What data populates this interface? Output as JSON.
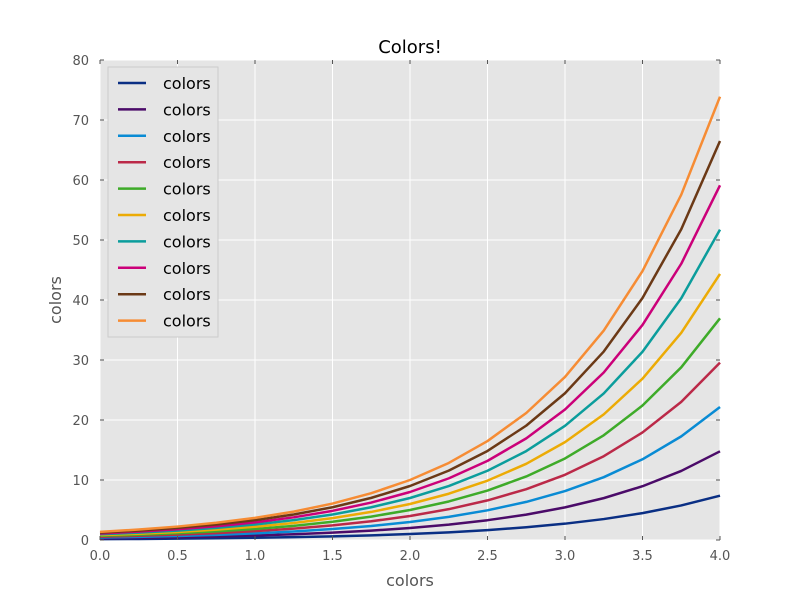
{
  "chart_data": {
    "type": "line",
    "title": "Colors!",
    "xlabel": "colors",
    "ylabel": "colors",
    "xlim": [
      0,
      4
    ],
    "ylim": [
      0,
      80
    ],
    "xticks": [
      "0.0",
      "0.5",
      "1.0",
      "1.5",
      "2.0",
      "2.5",
      "3.0",
      "3.5",
      "4.0"
    ],
    "yticks": [
      "0",
      "10",
      "20",
      "30",
      "40",
      "50",
      "60",
      "70",
      "80"
    ],
    "grid": true,
    "background": "#e5e5e5",
    "legend_position": "upper left",
    "x": [
      0,
      0.25,
      0.5,
      0.75,
      1.0,
      1.25,
      1.5,
      1.75,
      2.0,
      2.25,
      2.5,
      2.75,
      3.0,
      3.25,
      3.5,
      3.75,
      4.0
    ],
    "series": [
      {
        "name": "colors",
        "color": "#0a2f84",
        "values": [
          0.14,
          0.17,
          0.22,
          0.29,
          0.37,
          0.48,
          0.61,
          0.78,
          1.0,
          1.28,
          1.65,
          2.12,
          2.72,
          3.49,
          4.48,
          5.76,
          7.39
        ]
      },
      {
        "name": "colors",
        "color": "#4b0b69",
        "values": [
          0.27,
          0.35,
          0.45,
          0.58,
          0.74,
          0.95,
          1.22,
          1.56,
          2.0,
          2.57,
          3.3,
          4.23,
          5.44,
          6.98,
          8.96,
          11.51,
          14.78
        ]
      },
      {
        "name": "colors",
        "color": "#098bd4",
        "values": [
          0.41,
          0.52,
          0.67,
          0.86,
          1.1,
          1.42,
          1.83,
          2.34,
          3.0,
          3.85,
          4.95,
          6.35,
          8.15,
          10.47,
          13.45,
          17.27,
          22.17
        ]
      },
      {
        "name": "colors",
        "color": "#bb2948",
        "values": [
          0.54,
          0.7,
          0.89,
          1.15,
          1.47,
          1.89,
          2.43,
          3.12,
          4.0,
          5.14,
          6.6,
          8.47,
          10.87,
          13.96,
          17.93,
          23.02,
          29.56
        ]
      },
      {
        "name": "colors",
        "color": "#3eab29",
        "values": [
          0.68,
          0.87,
          1.12,
          1.44,
          1.84,
          2.36,
          3.04,
          3.9,
          5.0,
          6.42,
          8.24,
          10.59,
          13.59,
          17.45,
          22.41,
          28.78,
          36.95
        ]
      },
      {
        "name": "colors",
        "color": "#ecab05",
        "values": [
          0.81,
          1.05,
          1.34,
          1.72,
          2.21,
          2.84,
          3.65,
          4.68,
          6.0,
          7.71,
          9.89,
          12.7,
          16.31,
          20.94,
          26.89,
          34.53,
          44.34
        ]
      },
      {
        "name": "colors",
        "color": "#0b9d9c",
        "values": [
          0.95,
          1.22,
          1.56,
          2.01,
          2.58,
          3.31,
          4.25,
          5.46,
          7.0,
          8.99,
          11.54,
          14.82,
          19.03,
          24.43,
          31.37,
          40.29,
          51.73
        ]
      },
      {
        "name": "colors",
        "color": "#cb0079",
        "values": [
          1.08,
          1.4,
          1.79,
          2.3,
          2.94,
          3.78,
          4.86,
          6.24,
          8.0,
          10.27,
          13.19,
          16.94,
          21.75,
          27.92,
          35.85,
          46.04,
          59.12
        ]
      },
      {
        "name": "colors",
        "color": "#6b3916",
        "values": [
          1.22,
          1.57,
          2.01,
          2.59,
          3.31,
          4.25,
          5.46,
          7.02,
          9.0,
          11.56,
          14.84,
          19.06,
          24.46,
          31.41,
          40.33,
          51.8,
          66.51
        ]
      },
      {
        "name": "colors",
        "color": "#f68c34",
        "values": [
          1.35,
          1.75,
          2.24,
          2.87,
          3.68,
          4.73,
          6.07,
          7.8,
          10.0,
          12.84,
          16.49,
          21.17,
          27.18,
          34.9,
          44.82,
          57.55,
          73.89
        ]
      }
    ]
  }
}
